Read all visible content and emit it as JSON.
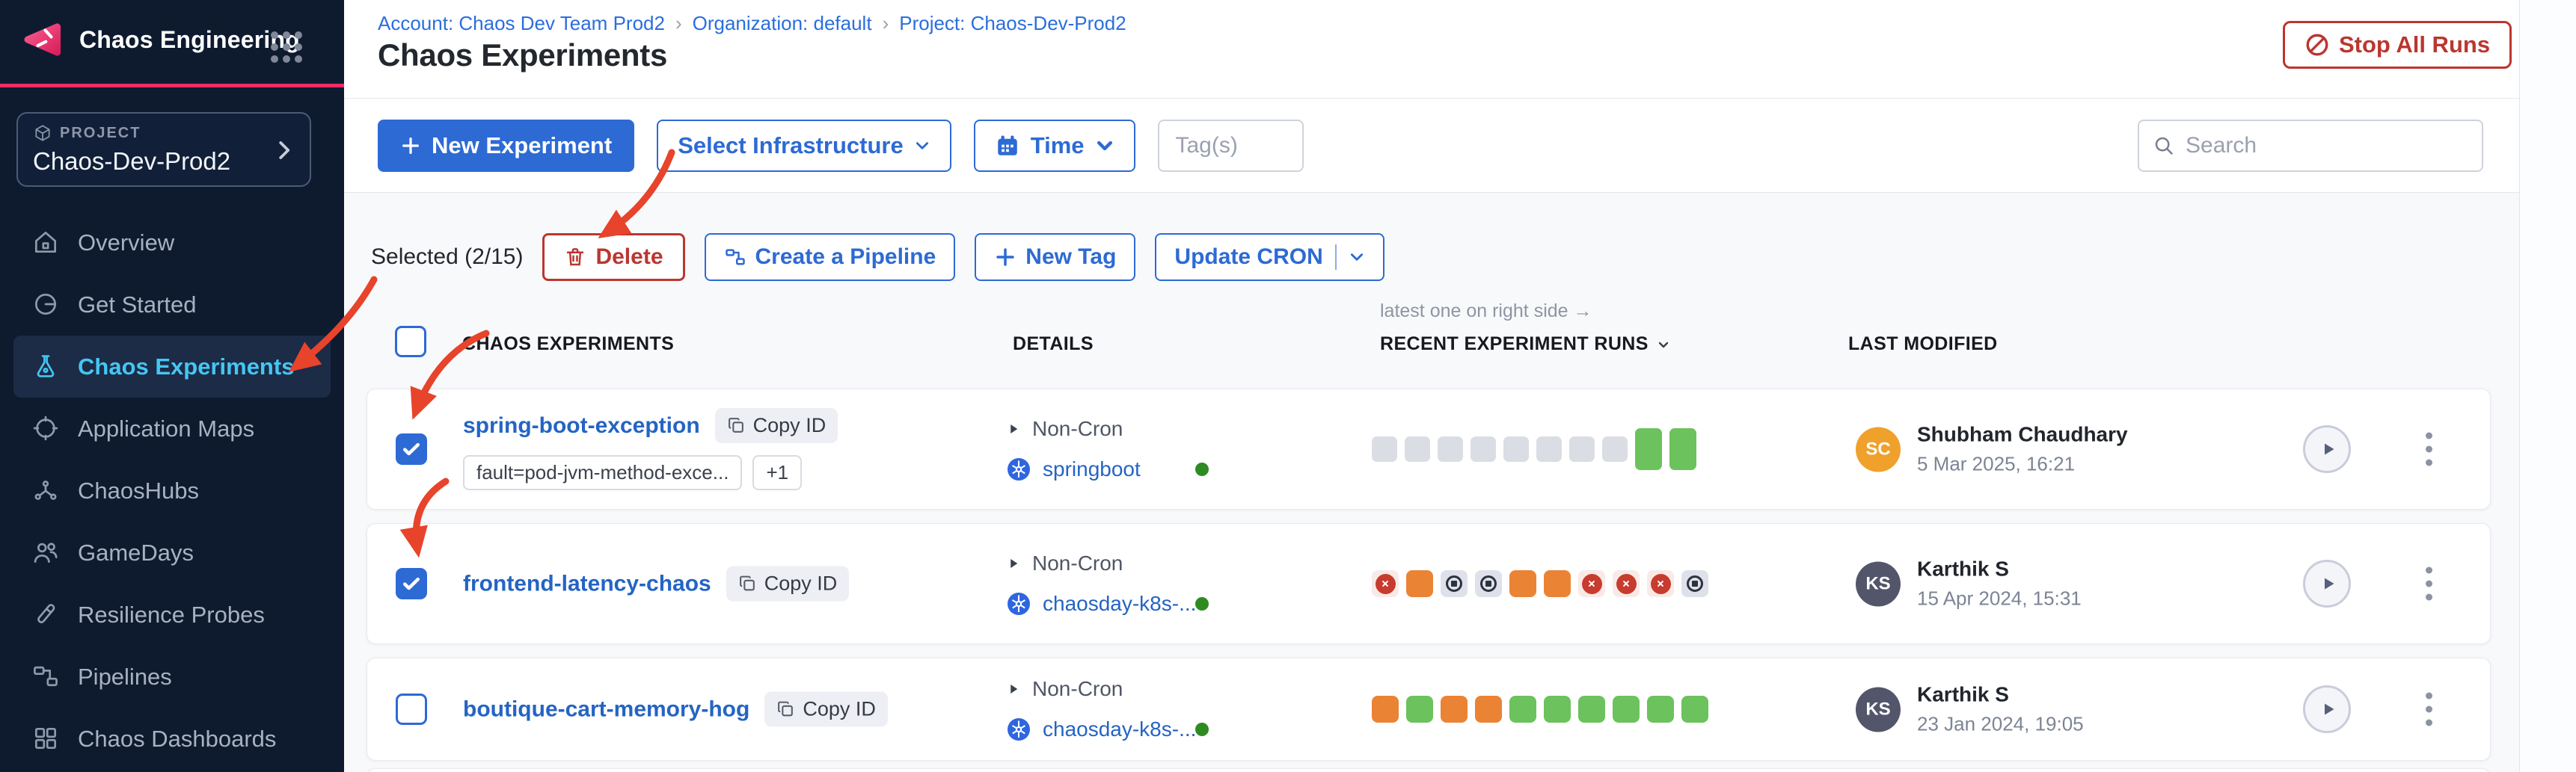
{
  "app": {
    "brand": "Chaos Engineering"
  },
  "project_selector": {
    "label": "PROJECT",
    "name": "Chaos-Dev-Prod2"
  },
  "sidebar": {
    "items": [
      {
        "label": "Overview",
        "icon": "home",
        "active": false
      },
      {
        "label": "Get Started",
        "icon": "start",
        "active": false
      },
      {
        "label": "Chaos Experiments",
        "icon": "flask",
        "active": true
      },
      {
        "label": "Application Maps",
        "icon": "target",
        "active": false
      },
      {
        "label": "ChaosHubs",
        "icon": "hub",
        "active": false
      },
      {
        "label": "GameDays",
        "icon": "people",
        "active": false
      },
      {
        "label": "Resilience Probes",
        "icon": "probe",
        "active": false
      },
      {
        "label": "Pipelines",
        "icon": "pipeline",
        "active": false
      },
      {
        "label": "Chaos Dashboards",
        "icon": "dashboard",
        "active": false
      }
    ]
  },
  "breadcrumb": {
    "separator": "›",
    "items": [
      "Account: Chaos Dev Team Prod2",
      "Organization: default",
      "Project: Chaos-Dev-Prod2"
    ]
  },
  "page": {
    "title": "Chaos Experiments"
  },
  "header_actions": {
    "stop_all_runs": "Stop All Runs"
  },
  "toolbar": {
    "new_experiment": "New Experiment",
    "select_infrastructure": "Select Infrastructure",
    "time": "Time",
    "tags_placeholder": "Tag(s)",
    "search_placeholder": "Search"
  },
  "selection_bar": {
    "selected_text": "Selected (2/15)",
    "delete": "Delete",
    "create_pipeline": "Create a Pipeline",
    "new_tag": "New Tag",
    "update_cron": "Update CRON"
  },
  "table": {
    "runs_note": "latest one on right side →",
    "headers": {
      "experiments": "CHAOS EXPERIMENTS",
      "details": "DETAILS",
      "runs": "RECENT EXPERIMENT RUNS",
      "modified": "LAST MODIFIED"
    },
    "copy_id_label": "Copy ID",
    "rows": [
      {
        "name": "spring-boot-exception",
        "checked": true,
        "tags": [
          "fault=pod-jvm-method-exce..."
        ],
        "tags_more": "+1",
        "schedule": "Non-Cron",
        "infrastructure": "springboot",
        "infra_status_color": "#2e8b22",
        "runs": [
          "na",
          "na",
          "na",
          "na",
          "na",
          "na",
          "na",
          "na",
          "passed",
          "passed"
        ],
        "modified_by": "Shubham Chaudhary",
        "initials": "SC",
        "avatar_color": "#efa12c",
        "modified_at": "5 Mar 2025, 16:21"
      },
      {
        "name": "frontend-latency-chaos",
        "checked": true,
        "tags": [],
        "tags_more": "",
        "schedule": "Non-Cron",
        "infrastructure": "chaosday-k8s-...",
        "infra_status_color": "#2e8b22",
        "runs": [
          "failed",
          "running",
          "stopped",
          "stopped",
          "running",
          "running",
          "failed",
          "failed",
          "failed",
          "stopped"
        ],
        "modified_by": "Karthik S",
        "initials": "KS",
        "avatar_color": "#53566a",
        "modified_at": "15 Apr 2024, 15:31"
      },
      {
        "name": "boutique-cart-memory-hog",
        "checked": false,
        "tags": [],
        "tags_more": "",
        "schedule": "Non-Cron",
        "infrastructure": "chaosday-k8s-...",
        "infra_status_color": "#2e8b22",
        "runs": [
          "running",
          "completed",
          "running",
          "running",
          "completed",
          "completed",
          "completed",
          "completed",
          "completed",
          "completed"
        ],
        "modified_by": "Karthik S",
        "initials": "KS",
        "avatar_color": "#53566a",
        "modified_at": "23 Jan 2024, 19:05"
      }
    ]
  },
  "colors": {
    "module_accent": "#ee2c67",
    "primary_blue": "#2d6ad4",
    "link_blue": "#2464c4",
    "danger_red": "#bb3630",
    "run_completed": "#6cc25c",
    "run_running": "#ea8434",
    "run_failed": "#c73c2e",
    "run_empty": "#dbdde4",
    "annotation_red": "#e8432b",
    "sidebar_bg": "#0e1b2f",
    "active_nav": "#45c6f4"
  }
}
